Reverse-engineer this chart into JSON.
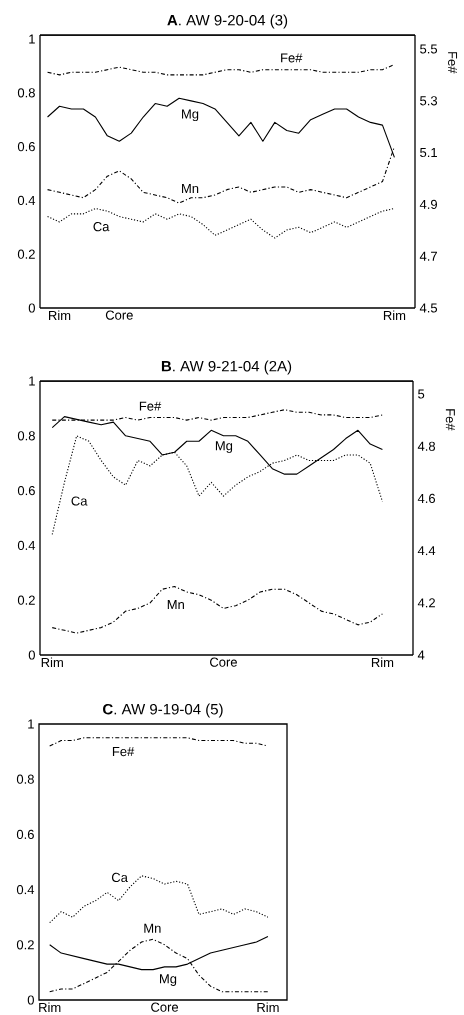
{
  "chart_data": [
    {
      "type": "line",
      "title": "**A**. AW 9-20-04 (3)",
      "y2label": "Fe#",
      "categories": [
        null,
        "Rim",
        null,
        null,
        null,
        null,
        "Core",
        null,
        null,
        null,
        null,
        null,
        null,
        null,
        null,
        null,
        null,
        null,
        null,
        null,
        null,
        null,
        null,
        null,
        null,
        null,
        null,
        null,
        null,
        "Rim"
      ],
      "ylim": [
        0,
        1.015
      ],
      "yticks": [
        0,
        0.2,
        0.4,
        0.6,
        0.8,
        1
      ],
      "y2lim": [
        4.5,
        5.554
      ],
      "y2ticks": [
        4.5,
        4.7,
        4.9,
        5.1,
        5.3,
        5.5
      ],
      "series": [
        {
          "name": "Fe#",
          "color": "#000000",
          "line_style": "dashdot",
          "axis": "y2",
          "values": [
            5.41,
            5.4,
            5.41,
            5.41,
            5.41,
            5.42,
            5.43,
            5.42,
            5.41,
            5.41,
            5.4,
            5.4,
            5.4,
            5.4,
            5.41,
            5.42,
            5.42,
            5.41,
            5.42,
            5.42,
            5.42,
            5.42,
            5.42,
            5.41,
            5.41,
            5.41,
            5.41,
            5.42,
            5.42,
            5.44
          ]
        },
        {
          "name": "Mg",
          "color": "#000000",
          "line_style": "solid",
          "values": [
            0.71,
            0.75,
            0.74,
            0.74,
            0.71,
            0.64,
            0.62,
            0.65,
            0.71,
            0.76,
            0.75,
            0.78,
            0.77,
            0.76,
            0.74,
            0.69,
            0.64,
            0.69,
            0.62,
            0.69,
            0.66,
            0.65,
            0.7,
            0.72,
            0.74,
            0.74,
            0.71,
            0.69,
            0.68,
            0.56
          ]
        },
        {
          "name": "Mn",
          "color": "#000000",
          "line_style": "dashdot",
          "values": [
            0.44,
            0.43,
            0.42,
            0.41,
            0.44,
            0.49,
            0.51,
            0.48,
            0.43,
            0.42,
            0.41,
            0.39,
            0.41,
            0.41,
            0.42,
            0.44,
            0.45,
            0.43,
            0.44,
            0.45,
            0.45,
            0.43,
            0.44,
            0.43,
            0.42,
            0.41,
            0.43,
            0.45,
            0.47,
            0.6
          ]
        },
        {
          "name": "Ca",
          "color": "#000000",
          "line_style": "dotted",
          "values": [
            0.34,
            0.32,
            0.35,
            0.35,
            0.37,
            0.36,
            0.34,
            0.33,
            0.32,
            0.35,
            0.33,
            0.35,
            0.34,
            0.31,
            0.27,
            0.29,
            0.31,
            0.33,
            0.29,
            0.26,
            0.29,
            0.3,
            0.28,
            0.3,
            0.32,
            0.3,
            0.32,
            0.34,
            0.36,
            0.37
          ]
        }
      ]
    },
    {
      "type": "line",
      "title": "**B**. AW 9-21-04 (2A)",
      "y2label": "Fe#",
      "categories": [
        "Rim",
        null,
        null,
        null,
        null,
        null,
        null,
        null,
        null,
        null,
        null,
        null,
        null,
        null,
        "Core",
        null,
        null,
        null,
        null,
        null,
        null,
        null,
        null,
        null,
        null,
        null,
        null,
        "Rim"
      ],
      "ylim": [
        0,
        1.0
      ],
      "yticks": [
        0,
        0.2,
        0.4,
        0.6,
        0.8,
        1
      ],
      "y2lim": [
        4,
        5.05
      ],
      "y2ticks": [
        4,
        4.2,
        4.4,
        4.6,
        4.8,
        5
      ],
      "series": [
        {
          "name": "Fe#",
          "color": "#000000",
          "line_style": "dashdot",
          "axis": "y2",
          "values": [
            4.9,
            4.9,
            4.9,
            4.9,
            4.9,
            4.9,
            4.91,
            4.9,
            4.91,
            4.91,
            4.91,
            4.9,
            4.91,
            4.9,
            4.91,
            4.91,
            4.91,
            4.92,
            4.93,
            4.94,
            4.93,
            4.93,
            4.92,
            4.92,
            4.91,
            4.91,
            4.91,
            4.92
          ]
        },
        {
          "name": "Mg",
          "color": "#000000",
          "line_style": "solid",
          "values": [
            0.83,
            0.87,
            0.86,
            0.85,
            0.84,
            0.85,
            0.8,
            0.79,
            0.78,
            0.73,
            0.74,
            0.78,
            0.78,
            0.82,
            0.8,
            0.8,
            0.78,
            0.73,
            0.68,
            0.66,
            0.66,
            0.69,
            0.72,
            0.75,
            0.79,
            0.82,
            0.77,
            0.75
          ]
        },
        {
          "name": "Ca",
          "color": "#000000",
          "line_style": "dotted",
          "values": [
            0.44,
            0.63,
            0.8,
            0.78,
            0.71,
            0.65,
            0.62,
            0.71,
            0.69,
            0.73,
            0.74,
            0.69,
            0.58,
            0.63,
            0.58,
            0.62,
            0.65,
            0.67,
            0.7,
            0.71,
            0.73,
            0.71,
            0.71,
            0.71,
            0.73,
            0.73,
            0.7,
            0.56
          ]
        },
        {
          "name": "Mn",
          "color": "#000000",
          "line_style": "dashdot",
          "values": [
            0.1,
            0.09,
            0.08,
            0.09,
            0.1,
            0.12,
            0.16,
            0.17,
            0.19,
            0.24,
            0.25,
            0.23,
            0.22,
            0.2,
            0.17,
            0.18,
            0.2,
            0.23,
            0.24,
            0.24,
            0.22,
            0.19,
            0.16,
            0.15,
            0.13,
            0.11,
            0.12,
            0.15
          ]
        }
      ]
    },
    {
      "type": "line",
      "title": "**C**. AW 9-19-04 (5)",
      "categories": [
        "Rim",
        null,
        null,
        null,
        null,
        null,
        null,
        null,
        null,
        null,
        "Core",
        null,
        null,
        null,
        null,
        null,
        null,
        null,
        null,
        "Rim"
      ],
      "ylim": [
        0,
        1.0
      ],
      "yticks": [
        0,
        0.2,
        0.4,
        0.6,
        0.8,
        1
      ],
      "series": [
        {
          "name": "Fe#",
          "color": "#000000",
          "line_style": "dashdot",
          "values": [
            0.92,
            0.94,
            0.94,
            0.95,
            0.95,
            0.95,
            0.95,
            0.95,
            0.95,
            0.95,
            0.95,
            0.95,
            0.95,
            0.94,
            0.94,
            0.94,
            0.94,
            0.93,
            0.93,
            0.92
          ]
        },
        {
          "name": "Ca",
          "color": "#000000",
          "line_style": "dotted",
          "values": [
            0.28,
            0.32,
            0.3,
            0.34,
            0.36,
            0.39,
            0.36,
            0.41,
            0.45,
            0.44,
            0.42,
            0.43,
            0.42,
            0.31,
            0.32,
            0.33,
            0.31,
            0.33,
            0.32,
            0.3
          ]
        },
        {
          "name": "Mn",
          "color": "#000000",
          "line_style": "dashdot",
          "values": [
            0.03,
            0.04,
            0.04,
            0.06,
            0.08,
            0.1,
            0.14,
            0.18,
            0.21,
            0.22,
            0.2,
            0.17,
            0.15,
            0.09,
            0.05,
            0.03,
            0.03,
            0.03,
            0.03,
            0.03
          ]
        },
        {
          "name": "Mg",
          "color": "#000000",
          "line_style": "solid",
          "values": [
            0.2,
            0.17,
            0.16,
            0.15,
            0.14,
            0.13,
            0.13,
            0.12,
            0.11,
            0.11,
            0.12,
            0.12,
            0.13,
            0.15,
            0.17,
            0.18,
            0.19,
            0.2,
            0.21,
            0.23
          ]
        }
      ]
    }
  ]
}
